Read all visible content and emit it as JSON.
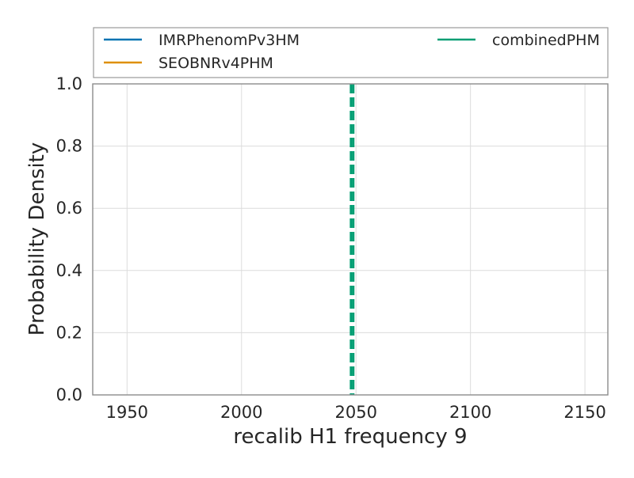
{
  "chart_data": {
    "type": "line",
    "title": "",
    "xlabel": "recalib H1 frequency 9",
    "ylabel": "Probability Density",
    "xlim": [
      1935,
      2160
    ],
    "ylim": [
      0.0,
      1.0
    ],
    "x_ticks": [
      1950,
      2000,
      2050,
      2100,
      2150
    ],
    "y_ticks": [
      0.0,
      0.2,
      0.4,
      0.6,
      0.8,
      1.0
    ],
    "x_tick_labels": [
      "1950",
      "2000",
      "2050",
      "2100",
      "2150"
    ],
    "y_tick_labels": [
      "0.0",
      "0.2",
      "0.4",
      "0.6",
      "0.8",
      "1.0"
    ],
    "grid": true,
    "legend_position": "top, above plot",
    "series": [
      {
        "name": "IMRPhenomPv3HM",
        "color": "#0173b2",
        "values": []
      },
      {
        "name": "SEOBNRv4PHM",
        "color": "#de8f05",
        "values": []
      },
      {
        "name": "combinedPHM",
        "color": "#029e73",
        "values": []
      }
    ],
    "vlines": [
      {
        "x": 2047.8,
        "color": "#029e73",
        "style": "dashed"
      },
      {
        "x": 2048.8,
        "color": "#029e73",
        "style": "dashed"
      }
    ]
  }
}
